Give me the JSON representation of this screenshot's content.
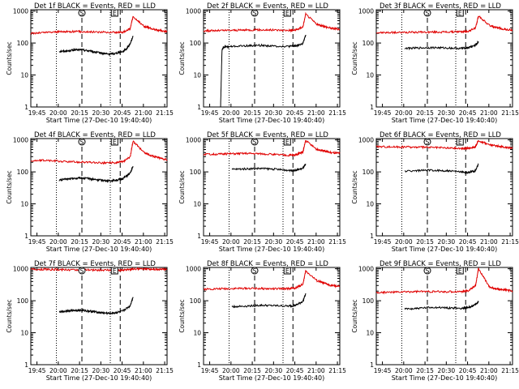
{
  "panels": [
    {
      "title": "Det 1f BLACK = Events, RED = LLD"
    },
    {
      "title": "Det 2f BLACK = Events, RED = LLD"
    },
    {
      "title": "Det 3f BLACK = Events, RED = LLD"
    },
    {
      "title": "Det 4f BLACK = Events, RED = LLD"
    },
    {
      "title": "Det 5f BLACK = Events, RED = LLD"
    },
    {
      "title": "Det 6f BLACK = Events, RED = LLD"
    },
    {
      "title": "Det 7f BLACK = Events, RED = LLD"
    },
    {
      "title": "Det 8f BLACK = Events, RED = LLD"
    },
    {
      "title": "Det 9f BLACK = Events, RED = LLD"
    }
  ],
  "xlabel": "Start Time (27-Dec-10 19:40:40)",
  "ylabel": "Counts/sec",
  "x_tick_labels": [
    "19:45",
    "20:00",
    "20:15",
    "20:30",
    "20:45",
    "21:00",
    "21:15"
  ],
  "y_tick_labels": [
    "1",
    "10",
    "100",
    "1000"
  ],
  "colors": {
    "events": "#000000",
    "lld": "#e00000",
    "axes": "#000000"
  },
  "markers": {
    "S": {
      "label": "S",
      "time_min": 36
    },
    "E": {
      "label": "E",
      "time_min": 59
    },
    "dotted_times_min": [
      18,
      56
    ],
    "dashed_times_min": [
      36,
      63
    ]
  },
  "chart_data": [
    {
      "type": "line",
      "title": "Det 1f BLACK = Events, RED = LLD",
      "xlabel": "Start Time (27-Dec-10 19:40:40)",
      "ylabel": "Counts/sec",
      "x_unit": "minutes after 19:40:40",
      "xlim": [
        0,
        96
      ],
      "ylim": [
        1,
        1100
      ],
      "y_scale": "log",
      "series": [
        {
          "name": "BLACK = Events",
          "color": "#000000",
          "x": [
            20,
            25,
            30,
            35,
            40,
            45,
            50,
            55,
            60,
            65,
            68,
            70,
            72
          ],
          "y": [
            55,
            56,
            60,
            62,
            58,
            52,
            48,
            45,
            48,
            55,
            70,
            95,
            160
          ]
        },
        {
          "name": "RED = LLD",
          "color": "#e00000",
          "x": [
            0,
            10,
            20,
            30,
            40,
            50,
            60,
            65,
            70,
            72,
            80,
            85,
            90,
            96
          ],
          "y": [
            200,
            215,
            225,
            230,
            225,
            220,
            215,
            220,
            280,
            650,
            330,
            280,
            250,
            230
          ]
        }
      ]
    },
    {
      "type": "line",
      "title": "Det 2f BLACK = Events, RED = LLD",
      "xlabel": "Start Time (27-Dec-10 19:40:40)",
      "ylabel": "Counts/sec",
      "x_unit": "minutes after 19:40:40",
      "xlim": [
        0,
        96
      ],
      "ylim": [
        1,
        1100
      ],
      "y_scale": "log",
      "series": [
        {
          "name": "BLACK = Events",
          "color": "#000000",
          "x": [
            12,
            13,
            14,
            20,
            30,
            40,
            50,
            60,
            65,
            70,
            72
          ],
          "y": [
            1,
            60,
            75,
            78,
            82,
            85,
            80,
            78,
            82,
            95,
            180
          ]
        },
        {
          "name": "RED = LLD",
          "color": "#e00000",
          "x": [
            0,
            10,
            20,
            30,
            40,
            50,
            60,
            65,
            70,
            72,
            80,
            85,
            90,
            96
          ],
          "y": [
            240,
            245,
            250,
            255,
            258,
            255,
            250,
            255,
            320,
            800,
            380,
            330,
            290,
            270
          ]
        }
      ]
    },
    {
      "type": "line",
      "title": "Det 3f BLACK = Events, RED = LLD",
      "xlabel": "Start Time (27-Dec-10 19:40:40)",
      "ylabel": "Counts/sec",
      "x_unit": "minutes after 19:40:40",
      "xlim": [
        0,
        96
      ],
      "ylim": [
        1,
        1100
      ],
      "y_scale": "log",
      "series": [
        {
          "name": "BLACK = Events",
          "color": "#000000",
          "x": [
            20,
            30,
            40,
            50,
            60,
            65,
            70,
            72
          ],
          "y": [
            68,
            70,
            72,
            70,
            68,
            72,
            85,
            110
          ]
        },
        {
          "name": "RED = LLD",
          "color": "#e00000",
          "x": [
            0,
            10,
            20,
            30,
            40,
            50,
            60,
            65,
            70,
            72,
            80,
            85,
            90,
            96
          ],
          "y": [
            210,
            212,
            215,
            218,
            220,
            222,
            225,
            235,
            300,
            700,
            350,
            300,
            270,
            250
          ]
        }
      ]
    },
    {
      "type": "line",
      "title": "Det 4f BLACK = Events, RED = LLD",
      "xlabel": "Start Time (27-Dec-10 19:40:40)",
      "ylabel": "Counts/sec",
      "x_unit": "minutes after 19:40:40",
      "xlim": [
        0,
        96
      ],
      "ylim": [
        1,
        1100
      ],
      "y_scale": "log",
      "series": [
        {
          "name": "BLACK = Events",
          "color": "#000000",
          "x": [
            20,
            25,
            30,
            35,
            40,
            45,
            50,
            55,
            60,
            65,
            70,
            72
          ],
          "y": [
            55,
            60,
            62,
            65,
            62,
            58,
            55,
            52,
            55,
            62,
            90,
            150
          ]
        },
        {
          "name": "RED = LLD",
          "color": "#e00000",
          "x": [
            0,
            10,
            20,
            30,
            40,
            50,
            60,
            65,
            70,
            72,
            80,
            85,
            90,
            96
          ],
          "y": [
            220,
            230,
            215,
            205,
            200,
            190,
            195,
            205,
            290,
            900,
            400,
            320,
            280,
            240
          ]
        }
      ]
    },
    {
      "type": "line",
      "title": "Det 5f BLACK = Events, RED = LLD",
      "xlabel": "Start Time (27-Dec-10 19:40:40)",
      "ylabel": "Counts/sec",
      "x_unit": "minutes after 19:40:40",
      "xlim": [
        0,
        96
      ],
      "ylim": [
        1,
        1100
      ],
      "y_scale": "log",
      "series": [
        {
          "name": "BLACK = Events",
          "color": "#000000",
          "x": [
            20,
            30,
            40,
            50,
            60,
            65,
            70,
            72
          ],
          "y": [
            120,
            125,
            128,
            122,
            112,
            112,
            130,
            170
          ]
        },
        {
          "name": "RED = LLD",
          "color": "#e00000",
          "x": [
            0,
            10,
            20,
            30,
            40,
            50,
            60,
            65,
            70,
            72,
            80,
            85,
            90,
            96
          ],
          "y": [
            350,
            360,
            370,
            380,
            370,
            350,
            330,
            340,
            420,
            950,
            500,
            450,
            400,
            380
          ]
        }
      ]
    },
    {
      "type": "line",
      "title": "Det 6f BLACK = Events, RED = LLD",
      "xlabel": "Start Time (27-Dec-10 19:40:40)",
      "ylabel": "Counts/sec",
      "x_unit": "minutes after 19:40:40",
      "xlim": [
        0,
        96
      ],
      "ylim": [
        1,
        1100
      ],
      "y_scale": "log",
      "series": [
        {
          "name": "BLACK = Events",
          "color": "#000000",
          "x": [
            20,
            30,
            40,
            50,
            60,
            65,
            70,
            72
          ],
          "y": [
            105,
            110,
            112,
            108,
            100,
            95,
            110,
            180
          ]
        },
        {
          "name": "RED = LLD",
          "color": "#e00000",
          "x": [
            0,
            10,
            20,
            30,
            40,
            50,
            60,
            65,
            70,
            72,
            80,
            85,
            90,
            96
          ],
          "y": [
            620,
            610,
            600,
            590,
            580,
            560,
            540,
            550,
            620,
            950,
            700,
            650,
            600,
            560
          ]
        }
      ]
    },
    {
      "type": "line",
      "title": "Det 7f BLACK = Events, RED = LLD",
      "xlabel": "Start Time (27-Dec-10 19:40:40)",
      "ylabel": "Counts/sec",
      "x_unit": "minutes after 19:40:40",
      "xlim": [
        0,
        96
      ],
      "ylim": [
        1,
        1100
      ],
      "y_scale": "log",
      "series": [
        {
          "name": "BLACK = Events",
          "color": "#000000",
          "x": [
            20,
            25,
            30,
            35,
            40,
            45,
            50,
            55,
            60,
            65,
            70,
            72
          ],
          "y": [
            45,
            48,
            50,
            50,
            48,
            45,
            42,
            40,
            42,
            48,
            70,
            130
          ]
        },
        {
          "name": "RED = LLD",
          "color": "#e00000",
          "x": [
            0,
            10,
            20,
            30,
            40,
            50,
            60,
            65,
            70,
            72,
            80,
            85,
            90,
            96
          ],
          "y": [
            950,
            960,
            940,
            930,
            920,
            910,
            900,
            910,
            950,
            1000,
            980,
            970,
            960,
            950
          ]
        }
      ]
    },
    {
      "type": "line",
      "title": "Det 8f BLACK = Events, RED = LLD",
      "xlabel": "Start Time (27-Dec-10 19:40:40)",
      "ylabel": "Counts/sec",
      "x_unit": "minutes after 19:40:40",
      "xlim": [
        0,
        96
      ],
      "ylim": [
        1,
        1100
      ],
      "y_scale": "log",
      "series": [
        {
          "name": "BLACK = Events",
          "color": "#000000",
          "x": [
            20,
            30,
            40,
            50,
            60,
            65,
            70,
            72
          ],
          "y": [
            65,
            68,
            72,
            70,
            68,
            72,
            95,
            170
          ]
        },
        {
          "name": "RED = LLD",
          "color": "#e00000",
          "x": [
            0,
            10,
            20,
            30,
            40,
            50,
            60,
            65,
            70,
            72,
            80,
            85,
            90,
            96
          ],
          "y": [
            230,
            235,
            240,
            245,
            240,
            235,
            240,
            250,
            330,
            850,
            420,
            350,
            300,
            280
          ]
        }
      ]
    },
    {
      "type": "line",
      "title": "Det 9f BLACK = Events, RED = LLD",
      "xlabel": "Start Time (27-Dec-10 19:40:40)",
      "ylabel": "Counts/sec",
      "x_unit": "minutes after 19:40:40",
      "xlim": [
        0,
        96
      ],
      "ylim": [
        1,
        1100
      ],
      "y_scale": "log",
      "series": [
        {
          "name": "BLACK = Events",
          "color": "#000000",
          "x": [
            20,
            30,
            40,
            50,
            60,
            65,
            70,
            72
          ],
          "y": [
            55,
            58,
            62,
            60,
            58,
            62,
            75,
            95
          ]
        },
        {
          "name": "RED = LLD",
          "color": "#e00000",
          "x": [
            0,
            10,
            20,
            30,
            40,
            50,
            60,
            65,
            70,
            72,
            80,
            85,
            90,
            96
          ],
          "y": [
            180,
            185,
            190,
            195,
            192,
            190,
            195,
            205,
            300,
            1000,
            260,
            230,
            220,
            200
          ]
        }
      ]
    }
  ]
}
